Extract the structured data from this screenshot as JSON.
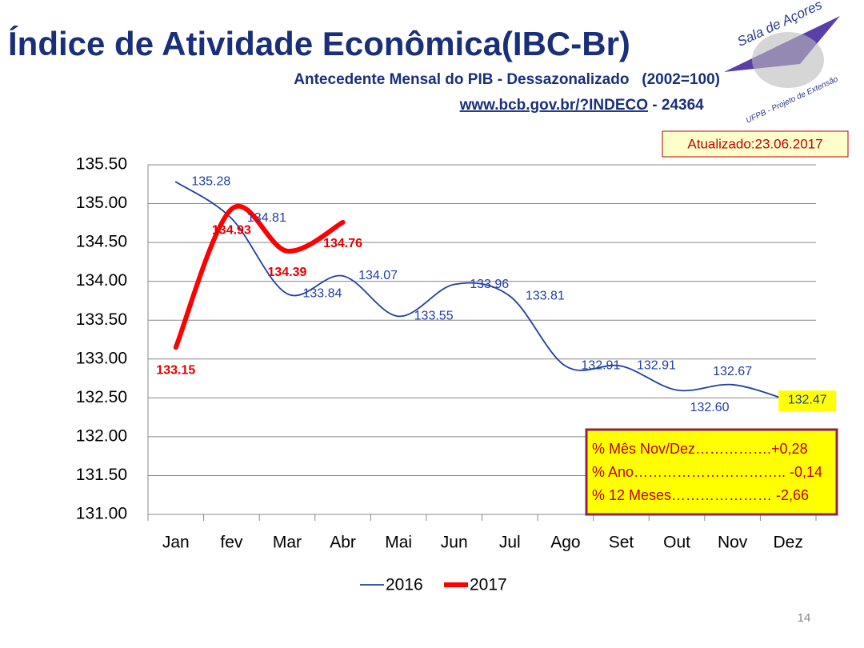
{
  "chart_data": {
    "type": "line",
    "title": "Índice de Atividade Econômica(IBC-Br)",
    "subtitle": "Antecedente Mensal do PIB - Dessazonalizado   (2002=100)",
    "source_link": "www.bcb.gov.br/?INDECO",
    "source_code": " - 24364",
    "updated": "Atualizado:23.06.2017",
    "logo_text": "Sala de Açores",
    "logo_subtext": "UFPB - Projeto de Extensão",
    "stats": [
      "% Mês Nov/Dez…………….+0,28",
      "% Ano………………………….. -0,14",
      "% 12 Meses………………… -2,66"
    ],
    "page_number": "14",
    "categories": [
      "Jan",
      "fev",
      "Mar",
      "Abr",
      "Mai",
      "Jun",
      "Jul",
      "Ago",
      "Set",
      "Out",
      "Nov",
      "Dez"
    ],
    "series": [
      {
        "name": "2016",
        "color": "#1f3ea8",
        "values": [
          135.28,
          134.81,
          133.84,
          134.07,
          133.55,
          133.96,
          133.81,
          132.91,
          132.91,
          132.6,
          132.67,
          132.47
        ],
        "value_labels": [
          "135.28",
          "134.81",
          "133.84",
          "134.07",
          "133.55",
          "133.96",
          "133.81",
          "132.91",
          "132.91",
          "132.60",
          "132.67",
          "132.47"
        ]
      },
      {
        "name": "2017",
        "color": "#ff0000",
        "values": [
          133.15,
          134.93,
          134.39,
          134.76,
          null,
          null,
          null,
          null,
          null,
          null,
          null,
          null
        ],
        "value_labels": [
          "133.15",
          "134.93",
          "134.39",
          "134.76",
          null,
          null,
          null,
          null,
          null,
          null,
          null,
          null
        ]
      }
    ],
    "ylim": [
      131.0,
      135.5
    ],
    "yticks": [
      {
        "value": 131.0,
        "label": "131.00"
      },
      {
        "value": 131.5,
        "label": "131.50"
      },
      {
        "value": 132.0,
        "label": "132.00"
      },
      {
        "value": 132.5,
        "label": "132.50"
      },
      {
        "value": 133.0,
        "label": "133.00"
      },
      {
        "value": 133.5,
        "label": "133.50"
      },
      {
        "value": 134.0,
        "label": "134.00"
      },
      {
        "value": 134.5,
        "label": "134.50"
      },
      {
        "value": 135.0,
        "label": "135.00"
      },
      {
        "value": 135.5,
        "label": "135.50"
      }
    ],
    "grid": true
  }
}
